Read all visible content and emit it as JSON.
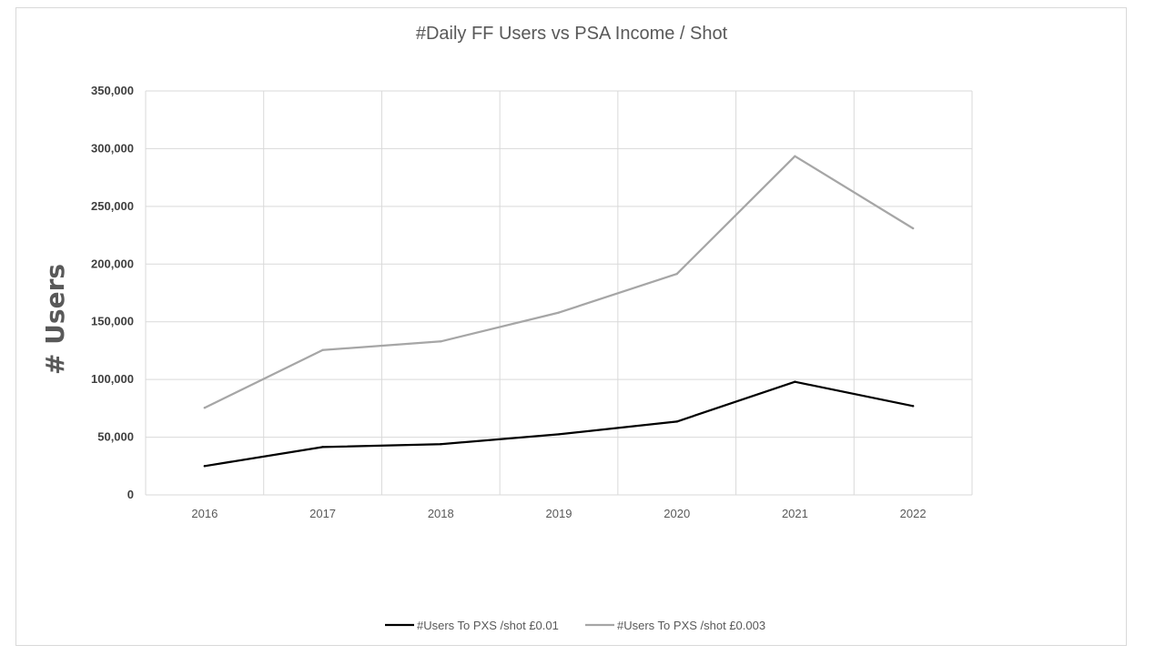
{
  "chart_data": {
    "type": "line",
    "title": "#Daily FF Users  vs PSA Income / Shot",
    "xlabel": "",
    "ylabel": "# Users",
    "categories": [
      "2016",
      "2017",
      "2018",
      "2019",
      "2020",
      "2021",
      "2022"
    ],
    "y_tick_labels": [
      "0",
      "50,000",
      "100,000",
      "150,000",
      "200,000",
      "250,000",
      "300,000",
      "350,000"
    ],
    "ylim": [
      0,
      350000
    ],
    "grid": true,
    "legend_position": "bottom",
    "series": [
      {
        "name": "#Users To PXS /shot £0.01",
        "color": "#000000",
        "values": [
          25000,
          41500,
          44000,
          52500,
          63500,
          98000,
          77000
        ]
      },
      {
        "name": "#Users To PXS /shot £0.003",
        "color": "#a6a6a6",
        "values": [
          75500,
          125500,
          133000,
          158000,
          191500,
          293500,
          231000
        ]
      }
    ]
  }
}
